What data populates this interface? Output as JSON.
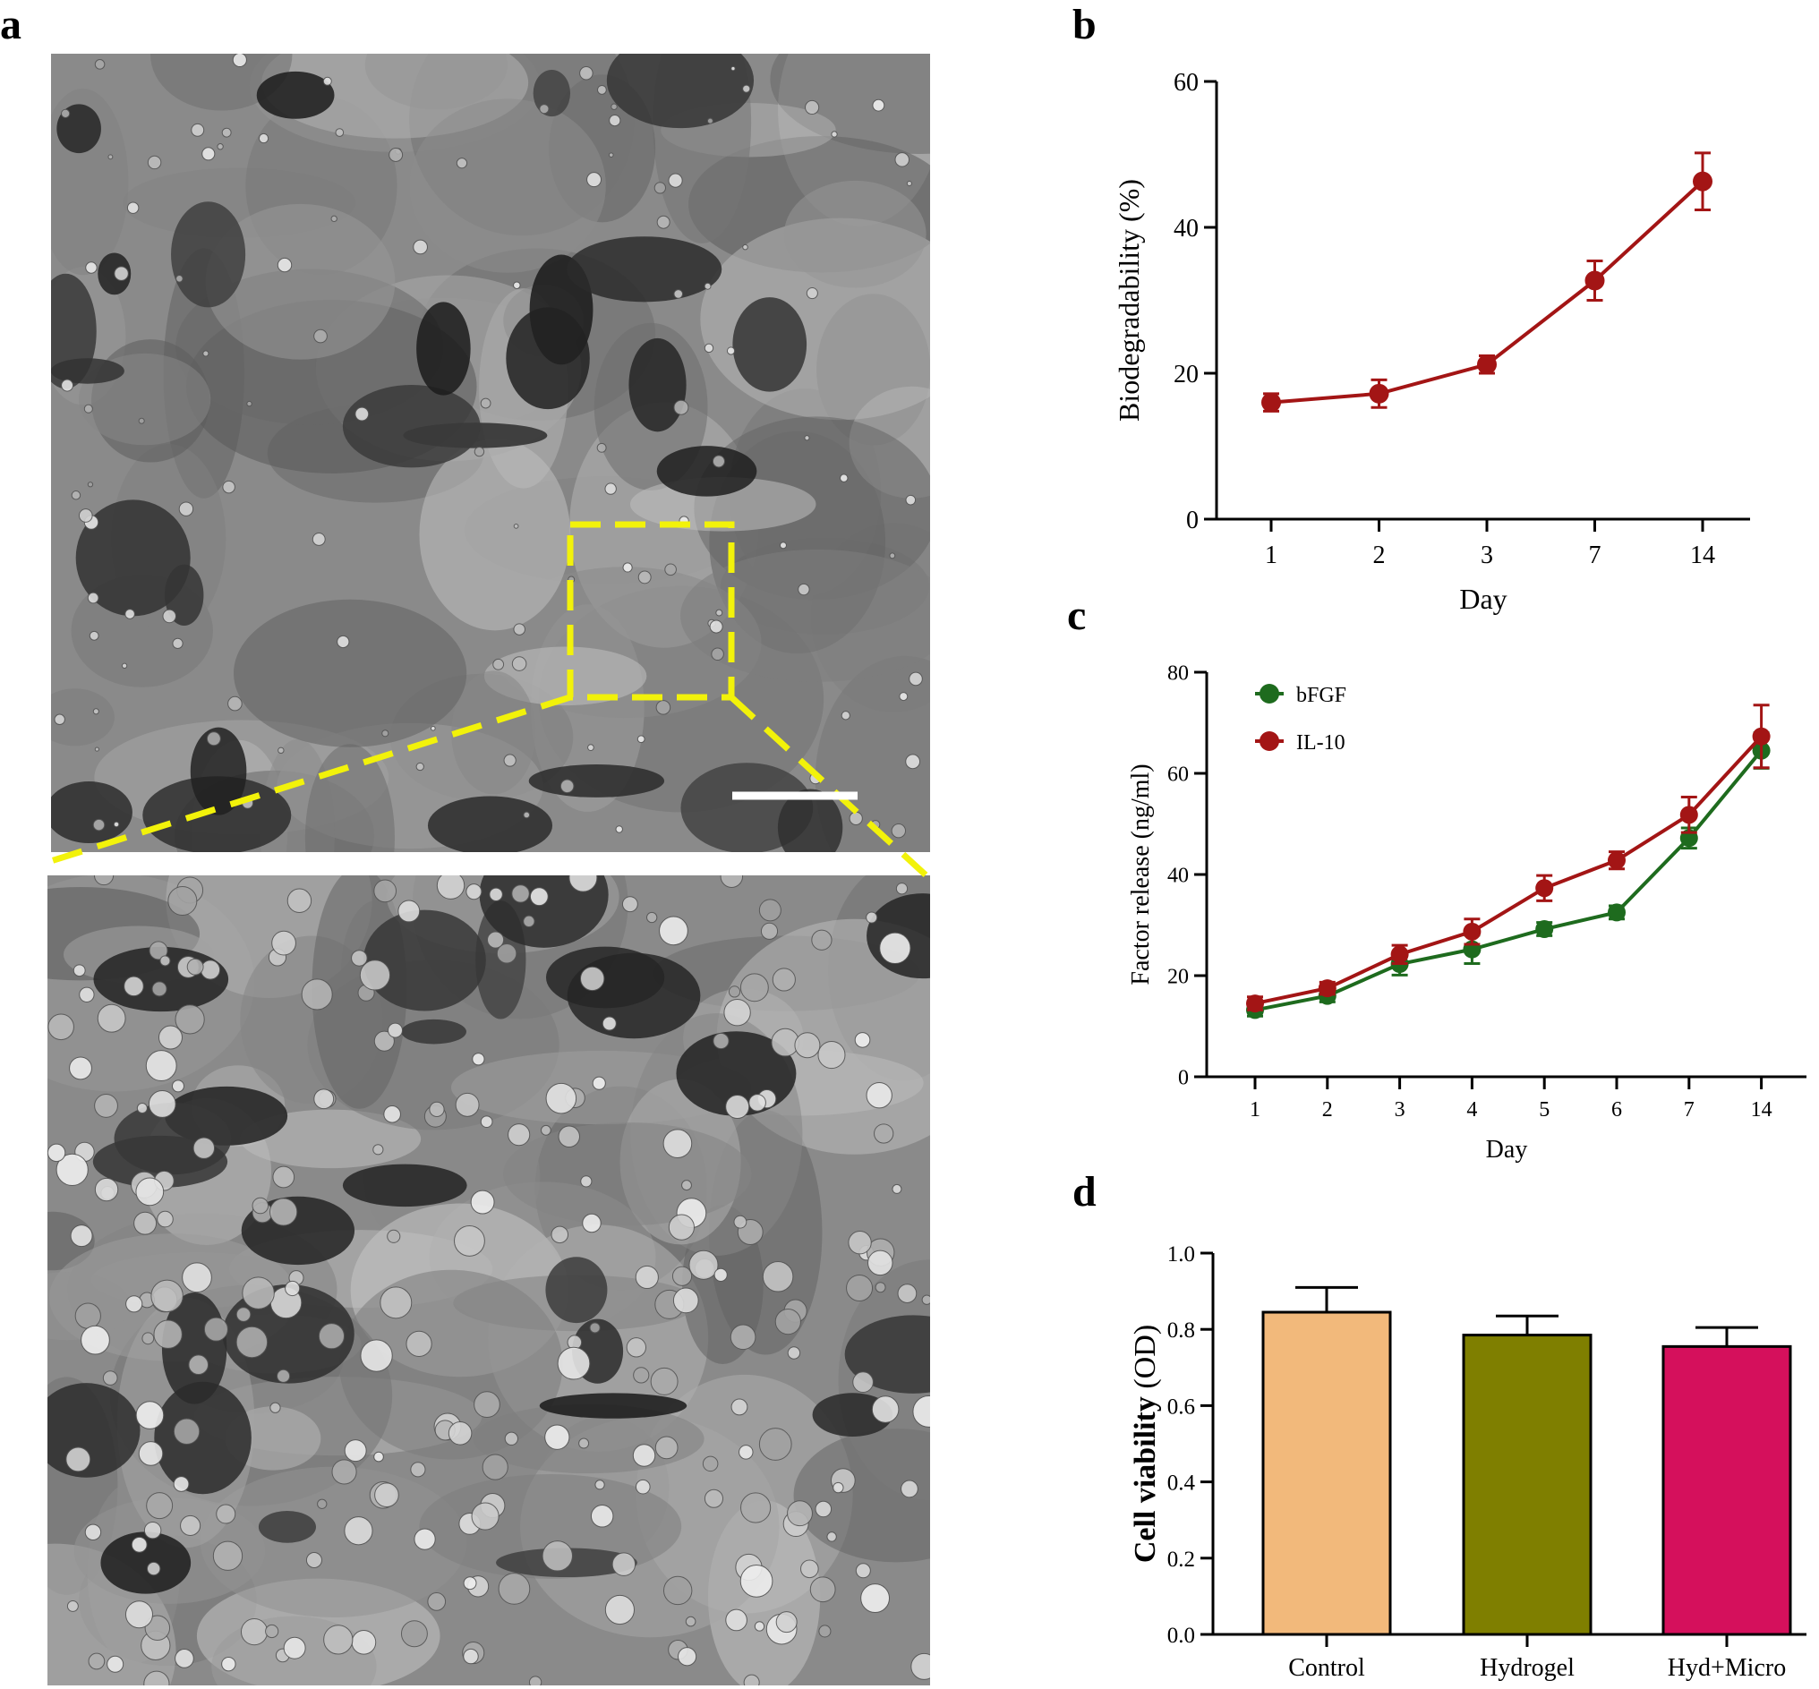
{
  "panels": {
    "a": "a",
    "b": "b",
    "c": "c",
    "d": "d"
  },
  "colors": {
    "red": "#A31515",
    "green": "#1E6B1E",
    "bar_control": "#F2B97B",
    "bar_hydrogel": "#7F7F00",
    "bar_hydmicro": "#D5105C",
    "highlight": "#F2F20A"
  },
  "chart_data": [
    {
      "id": "b",
      "type": "line",
      "categories": [
        "1",
        "2",
        "3",
        "7",
        "14"
      ],
      "series": [
        {
          "values": [
            16,
            17.2,
            21.2,
            32.7,
            46.3
          ],
          "errors": [
            1.2,
            1.9,
            1.2,
            2.7,
            3.9
          ],
          "color": "#A31515"
        }
      ],
      "xlabel": "Day",
      "ylabel": "Biodegradability (%)",
      "ylim": [
        0,
        60
      ],
      "yticks": [
        "0",
        "20",
        "40",
        "60"
      ],
      "grid": false
    },
    {
      "id": "c",
      "type": "line",
      "categories": [
        "1",
        "2",
        "3",
        "4",
        "5",
        "6",
        "7",
        "14"
      ],
      "series": [
        {
          "name": "bFGF",
          "values": [
            13.2,
            16,
            22.3,
            25.2,
            29.2,
            32.5,
            47.2,
            64.5
          ],
          "errors": [
            1.2,
            1.2,
            2.2,
            2.8,
            1.3,
            1.3,
            2,
            3.5
          ],
          "color": "#1E6B1E"
        },
        {
          "name": "IL-10",
          "values": [
            14.5,
            17.5,
            24.2,
            28.7,
            37.3,
            42.8,
            51.8,
            67.3
          ],
          "errors": [
            1.3,
            1.2,
            1.8,
            2.5,
            2.5,
            1.7,
            3.5,
            6.2
          ],
          "color": "#A31515"
        }
      ],
      "xlabel": "Day",
      "ylabel": "Factor release (ng/ml)",
      "ylim": [
        0,
        80
      ],
      "yticks": [
        "0",
        "20",
        "40",
        "60",
        "80"
      ],
      "legend": "top-left",
      "grid": false
    },
    {
      "id": "d",
      "type": "bar",
      "categories": [
        "Control",
        "Hydrogel",
        "Hyd+Micro"
      ],
      "values": [
        0.845,
        0.785,
        0.755
      ],
      "errors": [
        0.065,
        0.05,
        0.05
      ],
      "xlabel": "",
      "ylabel_bold": "Cell viability",
      "ylabel_unit": "(OD)",
      "ylim": [
        0,
        1.0
      ],
      "yticks": [
        "0.0",
        "0.2",
        "0.4",
        "0.6",
        "0.8",
        "1.0"
      ],
      "grid": false
    }
  ]
}
